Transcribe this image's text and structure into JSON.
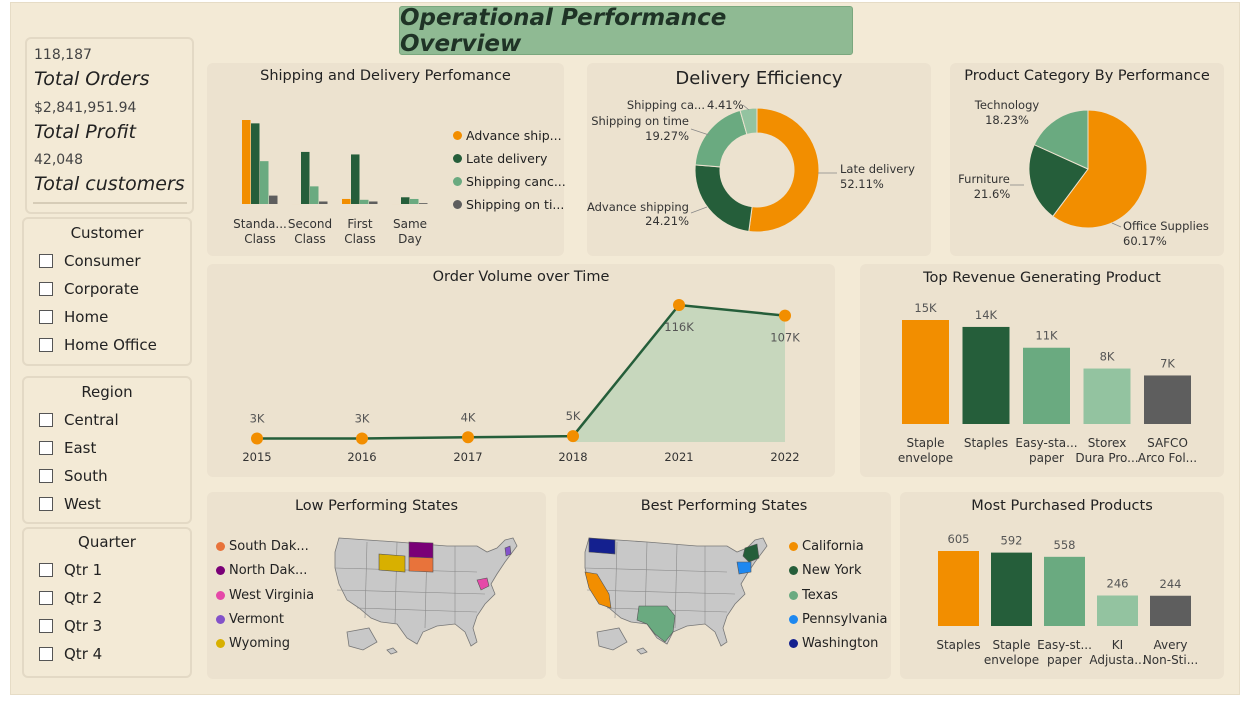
{
  "title": "Operational Performance Overview",
  "kpis": [
    {
      "value": "118,187",
      "label": "Total Orders"
    },
    {
      "value": "$2,841,951.94",
      "label": "Total Profit"
    },
    {
      "value": "42,048",
      "label": "Total customers"
    }
  ],
  "slicers": {
    "customer": {
      "title": "Customer",
      "items": [
        "Consumer",
        "Corporate",
        "Home",
        "Home Office"
      ]
    },
    "region": {
      "title": "Region",
      "items": [
        "Central",
        "East",
        "South",
        "West"
      ]
    },
    "quarter": {
      "title": "Quarter",
      "items": [
        "Qtr 1",
        "Qtr 2",
        "Qtr 3",
        "Qtr 4"
      ]
    }
  },
  "colors": {
    "orange": "#f28e00",
    "dark_green": "#255e3a",
    "mid_green": "#6aaa80",
    "light_green": "#93c3a0",
    "grey": "#5e5e5e",
    "canvas": "#f3ead6",
    "panel": "#ece2cf",
    "title_bar": "#8fba93"
  },
  "shipping": {
    "title": "Shipping and Delivery Perfomance",
    "legend": [
      "Advance ship...",
      "Late delivery",
      "Shipping canc...",
      "Shipping on ti..."
    ],
    "categories": [
      [
        "Standa...",
        "Class"
      ],
      [
        "Second",
        "Class"
      ],
      [
        "First",
        "Class"
      ],
      [
        "Same",
        "Day"
      ]
    ]
  },
  "delivery": {
    "title": "Delivery Efficiency",
    "labels": [
      {
        "name": "Late delivery",
        "pct": "52.11%"
      },
      {
        "name": "Advance shipping",
        "pct": "24.21%"
      },
      {
        "name": "Shipping on time",
        "pct": "19.27%"
      },
      {
        "name": "Shipping ca...",
        "pct": "4.41%"
      }
    ]
  },
  "category": {
    "title": "Product Category By Performance",
    "labels": [
      {
        "name": "Technology",
        "pct": "18.23%"
      },
      {
        "name": "Furniture",
        "pct": "21.6%"
      },
      {
        "name": "Office Supplies",
        "pct": "60.17%"
      }
    ]
  },
  "order_volume": {
    "title": "Order Volume over Time",
    "labels": [
      "3K",
      "3K",
      "4K",
      "5K",
      "116K",
      "107K"
    ]
  },
  "top_revenue": {
    "title": "Top Revenue Generating Product",
    "labels": [
      "15K",
      "14K",
      "11K",
      "8K",
      "7K"
    ],
    "categories": [
      [
        "Staple",
        "envelope"
      ],
      [
        "Staples",
        ""
      ],
      [
        "Easy-sta...",
        "paper"
      ],
      [
        "Storex",
        "Dura Pro..."
      ],
      [
        "SAFCO",
        "Arco Fol..."
      ]
    ]
  },
  "low_states": {
    "title": "Low Performing States",
    "legend": [
      {
        "name": "South Dak...",
        "color": "#e8733b"
      },
      {
        "name": "North Dak...",
        "color": "#7a0077"
      },
      {
        "name": "West Virginia",
        "color": "#e548a8"
      },
      {
        "name": "Vermont",
        "color": "#8352c9"
      },
      {
        "name": "Wyoming",
        "color": "#d8b000"
      }
    ]
  },
  "best_states": {
    "title": "Best Performing States",
    "legend": [
      {
        "name": "California",
        "color": "#f28e00"
      },
      {
        "name": "New York",
        "color": "#255e3a"
      },
      {
        "name": "Texas",
        "color": "#6aaa80"
      },
      {
        "name": "Pennsylvania",
        "color": "#1e88f0"
      },
      {
        "name": "Washington",
        "color": "#14208f"
      }
    ]
  },
  "most_purchased": {
    "title": "Most Purchased Products",
    "labels": [
      "605",
      "592",
      "558",
      "246",
      "244"
    ],
    "categories": [
      [
        "Staples",
        ""
      ],
      [
        "Staple",
        "envelope"
      ],
      [
        "Easy-st...",
        "paper"
      ],
      [
        "KI",
        "Adjusta..."
      ],
      [
        "Avery",
        "Non-Sti..."
      ]
    ]
  },
  "chart_data": [
    {
      "type": "bar",
      "title": "Shipping and Delivery Perfomance",
      "categories": [
        "Standard Class",
        "Second Class",
        "First Class",
        "Same Day"
      ],
      "series": [
        {
          "name": "Advance shipping",
          "values": [
            100,
            0,
            6,
            0
          ]
        },
        {
          "name": "Late delivery",
          "values": [
            96,
            62,
            59,
            8
          ]
        },
        {
          "name": "Shipping canceled",
          "values": [
            51,
            21,
            5,
            6
          ]
        },
        {
          "name": "Shipping on time",
          "values": [
            10,
            3,
            3,
            1
          ]
        }
      ]
    },
    {
      "type": "pie",
      "title": "Delivery Efficiency",
      "categories": [
        "Late delivery",
        "Advance shipping",
        "Shipping on time",
        "Shipping ca..."
      ],
      "values": [
        52.11,
        24.21,
        19.27,
        4.41
      ]
    },
    {
      "type": "pie",
      "title": "Product Category By Performance",
      "categories": [
        "Office Supplies",
        "Furniture",
        "Technology"
      ],
      "values": [
        60.17,
        21.6,
        18.23
      ]
    },
    {
      "type": "area",
      "title": "Order Volume over Time",
      "categories": [
        "2015",
        "2016",
        "2017",
        "2018",
        "2021",
        "2022"
      ],
      "values": [
        3,
        3,
        4,
        5,
        116,
        107
      ]
    },
    {
      "type": "bar",
      "title": "Top Revenue Generating Product",
      "categories": [
        "Staple envelope",
        "Staples",
        "Easy-staple paper",
        "Storex Dura Pro...",
        "SAFCO Arco Fol..."
      ],
      "values": [
        15,
        14,
        11,
        8,
        7
      ]
    },
    {
      "type": "bar",
      "title": "Most Purchased Products",
      "categories": [
        "Staples",
        "Staple envelope",
        "Easy-staple paper",
        "KI Adjusta...",
        "Avery Non-Sti..."
      ],
      "values": [
        605,
        592,
        558,
        246,
        244
      ]
    }
  ]
}
